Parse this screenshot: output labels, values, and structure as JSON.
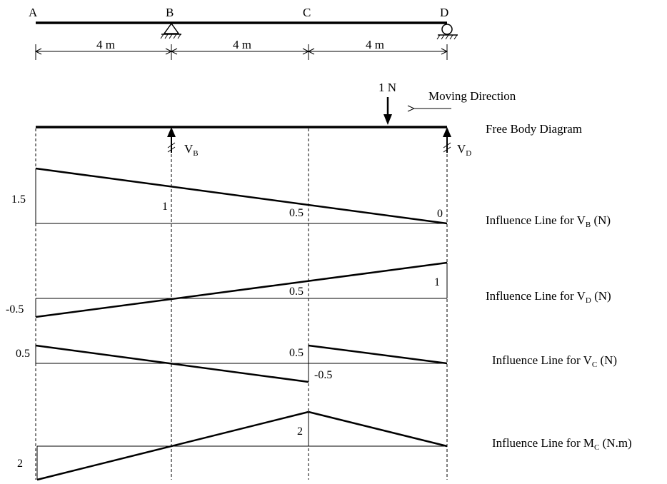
{
  "beam": {
    "points": {
      "a": "A",
      "b": "B",
      "c": "C",
      "d": "D"
    },
    "spans": [
      "4 m",
      "4 m",
      "4 m"
    ]
  },
  "load": {
    "label": "1 N",
    "moving_direction": "Moving Direction"
  },
  "fbd": {
    "title": "Free Body Diagram",
    "reaction_b": {
      "main": "V",
      "sub": "B"
    },
    "reaction_d": {
      "main": "V",
      "sub": "D"
    }
  },
  "il_vb": {
    "title_pre": "Influence Line for V",
    "title_sub": "B",
    "title_post": " (N)",
    "label_a": "1.5",
    "label_b": "1",
    "label_c": "0.5",
    "label_d": "0"
  },
  "il_vd": {
    "title_pre": "Influence Line for V",
    "title_sub": "D",
    "title_post": " (N)",
    "label_a": "-0.5",
    "label_c": "0.5",
    "label_d": "1"
  },
  "il_vc": {
    "title_pre": "Influence Line for V",
    "title_sub": "C",
    "title_post": " (N)",
    "label_a": "0.5",
    "label_c_top": "0.5",
    "label_c_bottom": "-0.5"
  },
  "il_mc": {
    "title_pre": "Influence Line for M",
    "title_sub": "C",
    "title_post": " (N.m)",
    "label_a": "2",
    "label_c": "2"
  }
}
